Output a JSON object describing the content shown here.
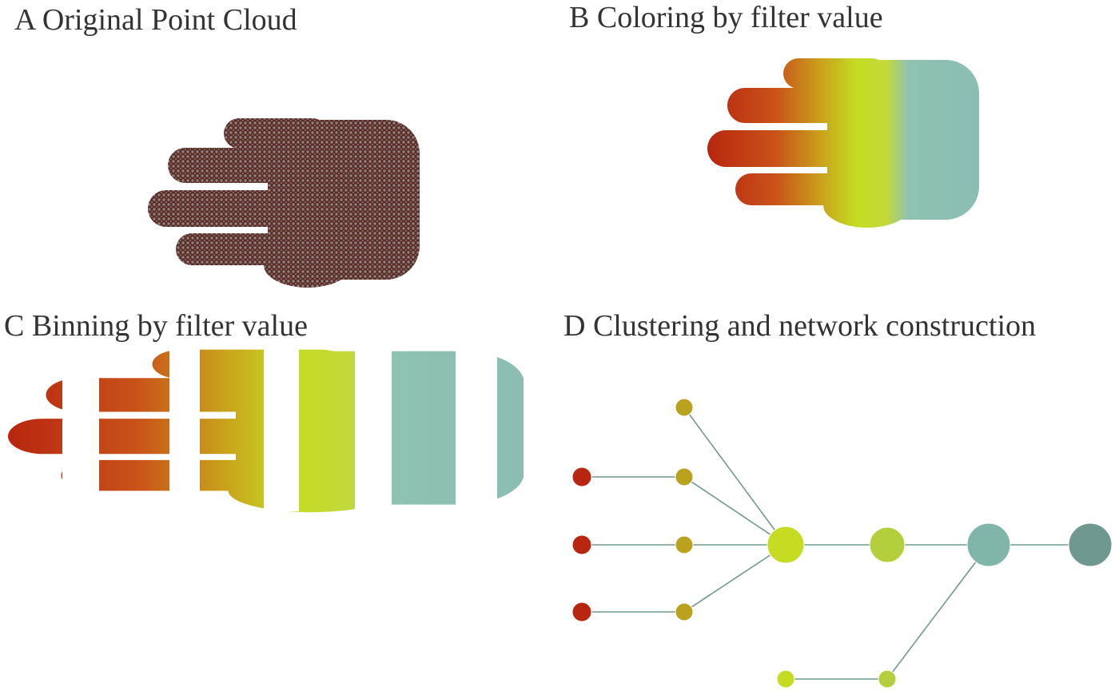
{
  "panels": [
    {
      "title": "A Original Point Cloud"
    },
    {
      "title": "B Coloring by filter value"
    },
    {
      "title": "C Binning by filter value"
    },
    {
      "title": "D Clustering and network construction"
    }
  ]
}
